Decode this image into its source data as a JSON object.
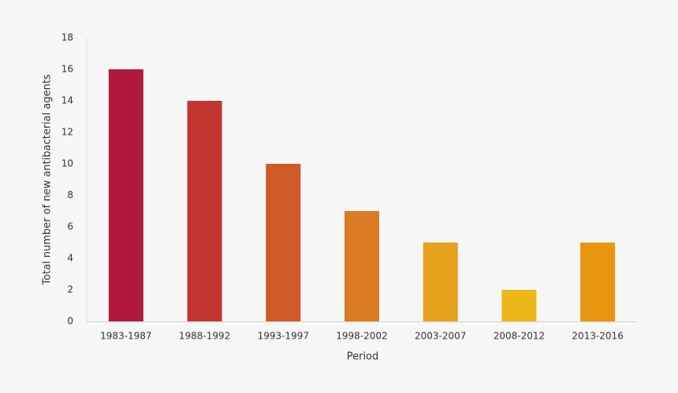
{
  "chart_data": {
    "type": "bar",
    "x_label": "Period",
    "y_label": "Total number of new antibacterial agents",
    "categories": [
      "1983-1987",
      "1988-1992",
      "1993-1997",
      "1998-2002",
      "2003-2007",
      "2008-2012",
      "2013-2016"
    ],
    "values": [
      16,
      14,
      10,
      7,
      5,
      2,
      5
    ],
    "colors": [
      "#b0193a",
      "#c3362f",
      "#d15a29",
      "#db7b22",
      "#e6a11d",
      "#ecb719",
      "#e8960f"
    ],
    "ylim": [
      0,
      18
    ],
    "yticks": [
      0,
      2,
      4,
      6,
      8,
      10,
      12,
      14,
      16,
      18
    ],
    "grid": false
  }
}
